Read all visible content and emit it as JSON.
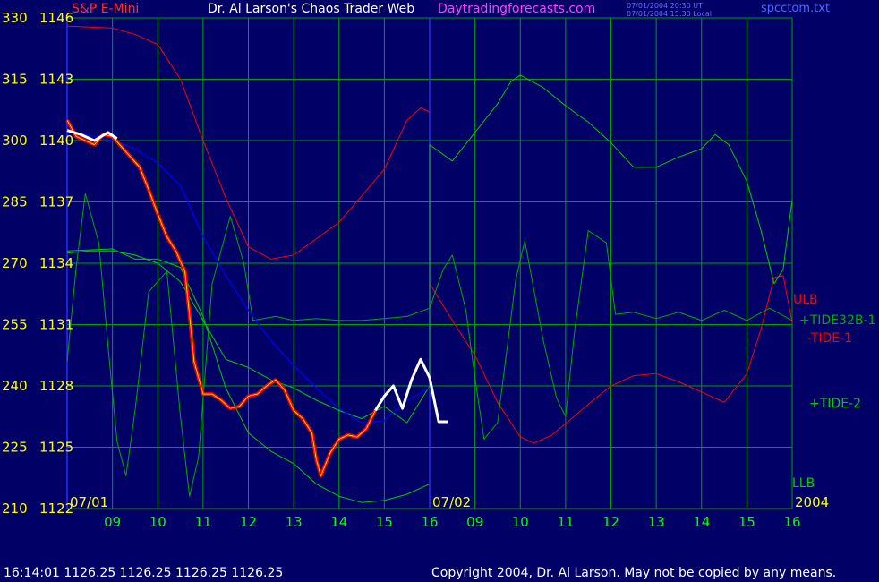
{
  "header": {
    "instrument": "S&P E-Mini",
    "title": "Dr. Al Larson's Chaos Trader Web",
    "site": "Daytradingforecasts.com",
    "stamp_ut": "07/01/2004 20:30 UT",
    "stamp_local": "07/01/2004 15:30 Local",
    "file": "spcctom.txt"
  },
  "footer": {
    "quote": "16:14:01  1126.25 1126.25 1126.25 1126.25",
    "copyright": "Copyright 2004, Dr. Al Larson. May not be copied by any means."
  },
  "colors": {
    "background": "#000066",
    "grid": "#00a000",
    "price": "#ff0000",
    "price_recent": "#ffffff",
    "average": "#0000ff",
    "tide32b": "#00aa00",
    "band": "#ff0000",
    "tide2": "#00cc00"
  },
  "chart_data": {
    "type": "line",
    "y_left_ticks": [
      "330",
      "315",
      "300",
      "285",
      "270",
      "255",
      "240",
      "225",
      "210"
    ],
    "y_right_ticks": [
      "1146",
      "1143",
      "1140",
      "1137",
      "1134",
      "1131",
      "1128",
      "1125",
      "1122"
    ],
    "ylim_price": [
      1122,
      1146
    ],
    "x_ticks": [
      "09",
      "10",
      "11",
      "12",
      "13",
      "14",
      "15",
      "16",
      "09",
      "10",
      "11",
      "12",
      "13",
      "14",
      "15",
      "16"
    ],
    "date_labels": [
      {
        "text": "07/01",
        "hour": 8.0
      },
      {
        "text": "07/02",
        "hour": 16.0
      },
      {
        "text": "2004",
        "hour": 24.0
      }
    ],
    "series_labels": [
      {
        "text": "ULB",
        "color": "#ff0000"
      },
      {
        "text": "+TIDE32B-1",
        "color": "#00aa00"
      },
      {
        "text": "-TIDE-1",
        "color": "#ff0000"
      },
      {
        "text": "+TIDE-2",
        "color": "#00cc00"
      },
      {
        "text": "LLB",
        "color": "#00cc00"
      }
    ],
    "price": {
      "points": [
        [
          8.0,
          1141.0
        ],
        [
          8.2,
          1140.2
        ],
        [
          8.4,
          1140.0
        ],
        [
          8.6,
          1139.8
        ],
        [
          8.8,
          1140.3
        ],
        [
          9.0,
          1140.2
        ],
        [
          9.2,
          1139.7
        ],
        [
          9.4,
          1139.2
        ],
        [
          9.6,
          1138.7
        ],
        [
          9.8,
          1137.6
        ],
        [
          10.0,
          1136.4
        ],
        [
          10.2,
          1135.3
        ],
        [
          10.4,
          1134.6
        ],
        [
          10.6,
          1133.6
        ],
        [
          10.7,
          1131.5
        ],
        [
          10.8,
          1129.2
        ],
        [
          11.0,
          1127.6
        ],
        [
          11.2,
          1127.6
        ],
        [
          11.4,
          1127.3
        ],
        [
          11.6,
          1126.9
        ],
        [
          11.8,
          1127.0
        ],
        [
          12.0,
          1127.5
        ],
        [
          12.2,
          1127.6
        ],
        [
          12.4,
          1128.0
        ],
        [
          12.6,
          1128.3
        ],
        [
          12.8,
          1127.8
        ],
        [
          13.0,
          1126.8
        ],
        [
          13.2,
          1126.4
        ],
        [
          13.4,
          1125.7
        ],
        [
          13.5,
          1124.4
        ],
        [
          13.6,
          1123.6
        ],
        [
          13.8,
          1124.7
        ],
        [
          14.0,
          1125.4
        ],
        [
          14.2,
          1125.6
        ],
        [
          14.4,
          1125.5
        ],
        [
          14.6,
          1125.9
        ],
        [
          14.8,
          1126.8
        ]
      ],
      "recent": [
        [
          8.0,
          1140.5
        ],
        [
          8.3,
          1140.3
        ],
        [
          8.6,
          1140.0
        ],
        [
          8.9,
          1140.4
        ],
        [
          9.1,
          1140.1
        ],
        [
          14.8,
          1126.8
        ],
        [
          15.0,
          1127.5
        ],
        [
          15.2,
          1128.0
        ],
        [
          15.4,
          1126.9
        ],
        [
          15.6,
          1128.3
        ],
        [
          15.8,
          1129.3
        ],
        [
          16.0,
          1128.4
        ],
        [
          16.2,
          1126.25
        ],
        [
          16.4,
          1126.25
        ]
      ]
    },
    "average": {
      "points": [
        [
          8.0,
          1140.5
        ],
        [
          9.0,
          1140.0
        ],
        [
          9.5,
          1139.6
        ],
        [
          10.0,
          1138.9
        ],
        [
          10.5,
          1137.8
        ],
        [
          11.0,
          1135.3
        ],
        [
          11.5,
          1133.4
        ],
        [
          12.0,
          1131.7
        ],
        [
          12.5,
          1130.2
        ],
        [
          13.0,
          1129.0
        ],
        [
          13.5,
          1127.9
        ],
        [
          14.0,
          1126.9
        ],
        [
          14.5,
          1126.2
        ],
        [
          15.0,
          1126.3
        ],
        [
          15.5,
          1127.3
        ],
        [
          16.0,
          1127.9
        ]
      ]
    },
    "tide32b": {
      "points": [
        [
          8.0,
          1129.2
        ],
        [
          8.2,
          1133.8
        ],
        [
          8.4,
          1137.4
        ],
        [
          8.7,
          1135.0
        ],
        [
          8.9,
          1130.0
        ],
        [
          9.1,
          1125.3
        ],
        [
          9.3,
          1123.6
        ],
        [
          9.5,
          1126.8
        ],
        [
          9.8,
          1132.6
        ],
        [
          10.2,
          1133.6
        ],
        [
          10.5,
          1126.5
        ],
        [
          10.7,
          1122.6
        ],
        [
          10.9,
          1124.5
        ],
        [
          11.2,
          1133.0
        ],
        [
          11.6,
          1136.3
        ],
        [
          11.9,
          1134.0
        ],
        [
          12.1,
          1131.2
        ],
        [
          12.6,
          1131.4
        ],
        [
          13.0,
          1131.2
        ],
        [
          13.5,
          1131.3
        ],
        [
          14.0,
          1131.2
        ],
        [
          14.5,
          1131.2
        ],
        [
          15.0,
          1131.3
        ],
        [
          15.5,
          1131.4
        ],
        [
          16.0,
          1131.8
        ],
        [
          16.3,
          1133.7
        ],
        [
          16.5,
          1134.4
        ],
        [
          16.8,
          1131.7
        ],
        [
          17.0,
          1128.4
        ],
        [
          17.2,
          1125.4
        ],
        [
          17.5,
          1126.2
        ],
        [
          17.9,
          1133.2
        ],
        [
          18.1,
          1135.1
        ],
        [
          18.5,
          1130.3
        ],
        [
          18.8,
          1127.4
        ],
        [
          19.0,
          1126.5
        ],
        [
          19.2,
          1130.7
        ],
        [
          19.5,
          1135.6
        ],
        [
          19.9,
          1135.0
        ],
        [
          20.1,
          1131.5
        ],
        [
          20.5,
          1131.6
        ],
        [
          21.0,
          1131.3
        ],
        [
          21.5,
          1131.6
        ],
        [
          22.0,
          1131.2
        ],
        [
          22.5,
          1131.7
        ],
        [
          23.0,
          1131.2
        ],
        [
          23.5,
          1131.8
        ],
        [
          24.0,
          1131.2
        ]
      ]
    },
    "upper_band": {
      "points": [
        [
          8.0,
          1145.6
        ],
        [
          9.0,
          1145.5
        ],
        [
          9.5,
          1145.2
        ],
        [
          10.0,
          1144.7
        ],
        [
          10.5,
          1143.0
        ],
        [
          11.0,
          1140.0
        ],
        [
          11.5,
          1137.2
        ],
        [
          12.0,
          1134.8
        ],
        [
          12.5,
          1134.2
        ],
        [
          13.0,
          1134.4
        ],
        [
          13.5,
          1135.2
        ],
        [
          14.0,
          1136.0
        ],
        [
          14.5,
          1137.3
        ],
        [
          15.0,
          1138.6
        ],
        [
          15.5,
          1141.0
        ],
        [
          15.8,
          1141.6
        ],
        [
          16.0,
          1141.4
        ]
      ]
    },
    "lower_band_right": {
      "points": [
        [
          16.0,
          1133.0
        ],
        [
          16.5,
          1131.2
        ],
        [
          17.0,
          1129.5
        ],
        [
          17.5,
          1127.2
        ],
        [
          18.0,
          1125.5
        ],
        [
          18.3,
          1125.2
        ],
        [
          18.7,
          1125.6
        ],
        [
          19.5,
          1127.1
        ],
        [
          20.0,
          1128.0
        ],
        [
          20.5,
          1128.5
        ],
        [
          21.0,
          1128.6
        ],
        [
          21.5,
          1128.2
        ],
        [
          22.0,
          1127.7
        ],
        [
          22.5,
          1127.2
        ],
        [
          23.0,
          1128.6
        ],
        [
          23.3,
          1130.7
        ],
        [
          23.6,
          1133.3
        ],
        [
          23.8,
          1133.4
        ],
        [
          24.0,
          1131.1
        ]
      ]
    },
    "tide2": {
      "points": [
        [
          8.0,
          1134.5
        ],
        [
          8.5,
          1134.6
        ],
        [
          9.0,
          1134.6
        ],
        [
          9.5,
          1134.4
        ],
        [
          10.0,
          1134.0
        ],
        [
          10.5,
          1133.1
        ],
        [
          11.0,
          1131.2
        ],
        [
          11.5,
          1129.3
        ],
        [
          12.0,
          1128.9
        ],
        [
          12.5,
          1128.3
        ],
        [
          13.0,
          1127.9
        ],
        [
          13.5,
          1127.3
        ],
        [
          14.0,
          1126.8
        ],
        [
          14.5,
          1126.4
        ],
        [
          15.0,
          1127.0
        ],
        [
          15.5,
          1126.2
        ],
        [
          16.0,
          1128.0
        ],
        [
          16.0,
          1139.8
        ],
        [
          16.5,
          1139.0
        ],
        [
          17.0,
          1140.4
        ],
        [
          17.5,
          1141.8
        ],
        [
          17.8,
          1142.9
        ],
        [
          18.0,
          1143.2
        ],
        [
          18.5,
          1142.6
        ],
        [
          19.0,
          1141.7
        ],
        [
          19.5,
          1140.9
        ],
        [
          20.0,
          1139.9
        ],
        [
          20.5,
          1138.7
        ],
        [
          21.0,
          1138.7
        ],
        [
          21.5,
          1139.2
        ],
        [
          22.0,
          1139.6
        ],
        [
          22.3,
          1140.3
        ],
        [
          22.6,
          1139.8
        ],
        [
          23.0,
          1138.0
        ],
        [
          23.3,
          1135.7
        ],
        [
          23.6,
          1133.0
        ],
        [
          23.8,
          1133.7
        ],
        [
          24.0,
          1137.1
        ]
      ]
    },
    "lower_band_left": {
      "points": [
        [
          8.0,
          1134.6
        ],
        [
          9.0,
          1134.7
        ],
        [
          9.5,
          1134.2
        ],
        [
          10.0,
          1134.2
        ],
        [
          10.5,
          1133.8
        ],
        [
          11.0,
          1131.4
        ],
        [
          11.5,
          1127.9
        ],
        [
          12.0,
          1125.7
        ],
        [
          12.5,
          1124.8
        ],
        [
          13.0,
          1124.2
        ],
        [
          13.5,
          1123.2
        ],
        [
          14.0,
          1122.6
        ],
        [
          14.5,
          1122.3
        ],
        [
          15.0,
          1122.4
        ],
        [
          15.5,
          1122.7
        ],
        [
          16.0,
          1123.2
        ]
      ]
    }
  }
}
